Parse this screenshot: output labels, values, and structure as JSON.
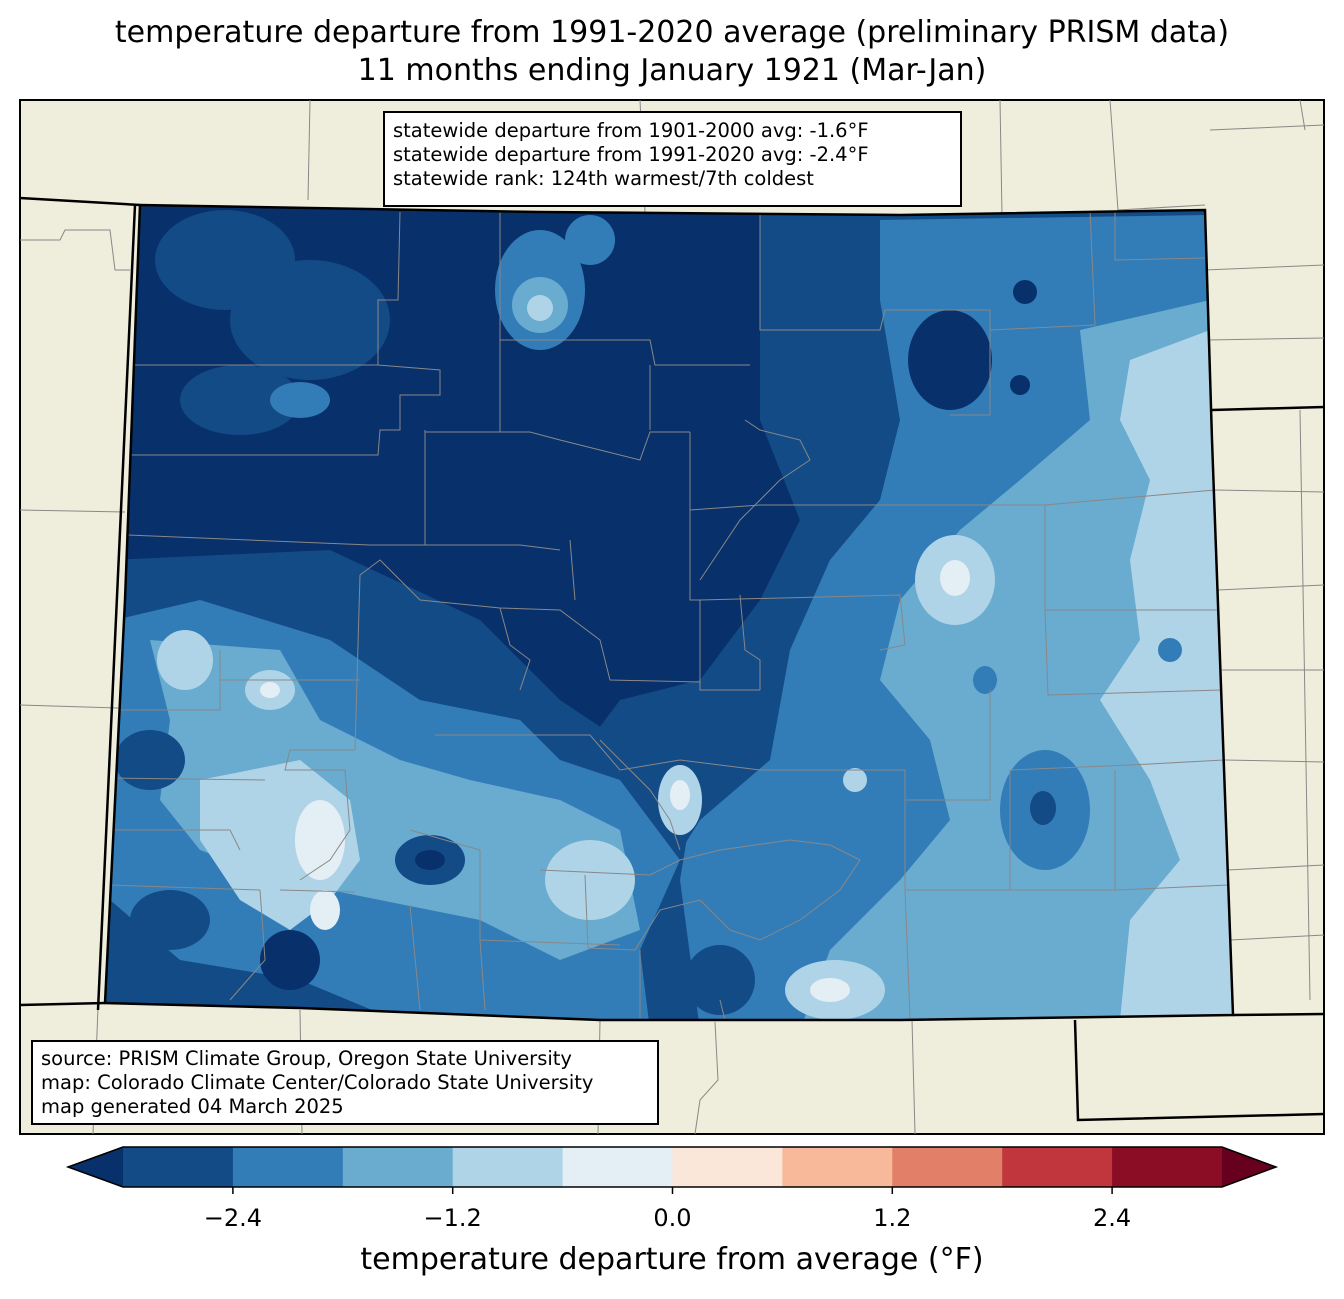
{
  "title": {
    "line1": "temperature departure from 1991-2020 average (preliminary PRISM data)",
    "line2": "11 months ending January 1921 (Mar-Jan)"
  },
  "stats": {
    "line1": "statewide departure from 1901-2000 avg: -1.6°F",
    "line2": "statewide departure from 1991-2020 avg: -2.4°F",
    "line3": "statewide rank: 124th warmest/7th coldest"
  },
  "source": {
    "line1": "source: PRISM Climate Group, Oregon State University",
    "line2": "map: Colorado Climate Center/Colorado State University",
    "line3": "map generated 04 March 2025"
  },
  "colorbar": {
    "label": "temperature departure from average (°F)",
    "ticks": [
      "−2.4",
      "−1.2",
      "0.0",
      "1.2",
      "2.4"
    ],
    "tick_values": [
      -2.4,
      -1.2,
      0.0,
      1.2,
      2.4
    ],
    "min": -3.0,
    "max": 3.0,
    "bins": [
      {
        "lo": -3.0,
        "hi": -2.4,
        "color": "#134b87"
      },
      {
        "lo": -2.4,
        "hi": -1.8,
        "color": "#327db8"
      },
      {
        "lo": -1.8,
        "hi": -1.2,
        "color": "#6aabd0"
      },
      {
        "lo": -1.2,
        "hi": -0.6,
        "color": "#b0d4e7"
      },
      {
        "lo": -0.6,
        "hi": 0.0,
        "color": "#e4eef5"
      },
      {
        "lo": 0.0,
        "hi": 0.6,
        "color": "#fbe6da"
      },
      {
        "lo": 0.6,
        "hi": 1.2,
        "color": "#f8b99b"
      },
      {
        "lo": 1.2,
        "hi": 1.8,
        "color": "#e27f68"
      },
      {
        "lo": 1.8,
        "hi": 2.4,
        "color": "#c0363c"
      },
      {
        "lo": 2.4,
        "hi": 3.0,
        "color": "#8a0c25"
      }
    ],
    "under_color": "#08306b",
    "over_color": "#67001f"
  },
  "colors": {
    "land": "#efeedc",
    "darkest": "#08306b",
    "county_line": "#888888"
  }
}
